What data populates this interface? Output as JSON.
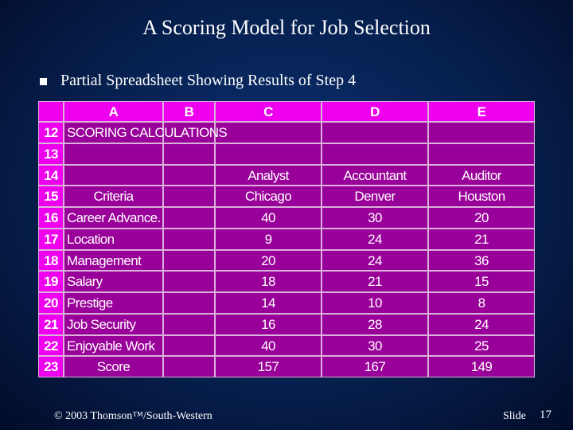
{
  "header": {
    "title": "A Scoring Model for Job Selection",
    "bullet": "Partial Spreadsheet Showing Results of Step 4"
  },
  "table": {
    "columns": [
      "A",
      "B",
      "C",
      "D",
      "E"
    ],
    "rows": [
      {
        "number": "12",
        "A": "SCORING CALCULATIONS"
      },
      {
        "number": "13"
      },
      {
        "number": "14",
        "C": "Analyst",
        "D": "Accountant",
        "E": "Auditor"
      },
      {
        "number": "15",
        "A": "Criteria",
        "C": "Chicago",
        "D": "Denver",
        "E": "Houston"
      },
      {
        "number": "16",
        "A": "Career Advance.",
        "C": "40",
        "D": "30",
        "E": "20"
      },
      {
        "number": "17",
        "A": "Location",
        "C": "9",
        "D": "24",
        "E": "21"
      },
      {
        "number": "18",
        "A": "Management",
        "C": "20",
        "D": "24",
        "E": "36"
      },
      {
        "number": "19",
        "A": "Salary",
        "C": "18",
        "D": "21",
        "E": "15"
      },
      {
        "number": "20",
        "A": "Prestige",
        "C": "14",
        "D": "10",
        "E": "8"
      },
      {
        "number": "21",
        "A": "Job Security",
        "C": "16",
        "D": "28",
        "E": "24"
      },
      {
        "number": "22",
        "A": "Enjoyable Work",
        "C": "40",
        "D": "30",
        "E": "25"
      },
      {
        "number": "23",
        "A": "Score",
        "C": "157",
        "D": "167",
        "E": "149"
      }
    ]
  },
  "footer": {
    "copyright": "© 2003 Thomson™/South-Western",
    "slide_label": "Slide",
    "slide_number": "17"
  }
}
